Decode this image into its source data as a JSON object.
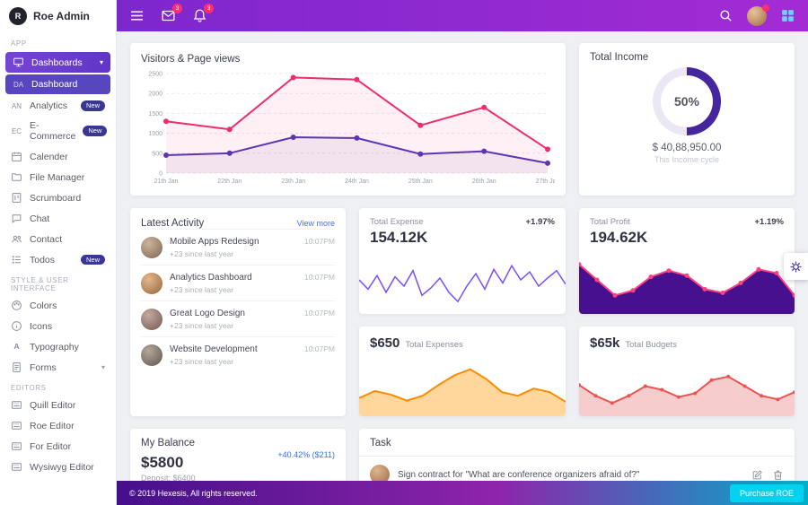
{
  "brand": {
    "name": "Roe Admin"
  },
  "topbar": {
    "mail_badge": "3",
    "bell_badge": "3"
  },
  "sidebar": {
    "badge_new": "New",
    "sections": {
      "app": "APP",
      "style": "STYLE & USER INTERFACE",
      "editors": "EDITORS"
    },
    "items": {
      "dashboards": "Dashboards",
      "dashboard": "Dashboard",
      "dashboard_prefix": "DA",
      "analytics": "Analytics",
      "analytics_prefix": "AN",
      "ecommerce": "E-Commerce",
      "ecommerce_prefix": "EC",
      "calender": "Calender",
      "file_manager": "File Manager",
      "scrumboard": "Scrumboard",
      "chat": "Chat",
      "contact": "Contact",
      "todos": "Todos",
      "colors": "Colors",
      "icons": "Icons",
      "typography": "Typography",
      "forms": "Forms",
      "quill_editor": "Quill Editor",
      "roe_editor": "Roe Editor",
      "for_editor": "For Editor",
      "wysiwyg_editor": "Wysiwyg Editor"
    }
  },
  "cards": {
    "visitors": {
      "title": "Visitors & Page views"
    },
    "income": {
      "title": "Total Income",
      "percent": "50%",
      "percent_value": 50,
      "amount": "$ 40,88,950.00",
      "caption": "This Income cycle"
    },
    "activity": {
      "title": "Latest Activity",
      "link": "View more",
      "items": [
        {
          "title": "Mobile Apps Redesign",
          "sub": "+23 since last year",
          "time": "10:07PM"
        },
        {
          "title": "Analytics Dashboard",
          "sub": "+23 since last year",
          "time": "10:07PM"
        },
        {
          "title": "Great Logo Design",
          "sub": "+23 since last year",
          "time": "10:07PM"
        },
        {
          "title": "Website Development",
          "sub": "+23 since last year",
          "time": "10:07PM"
        }
      ]
    },
    "expense": {
      "label": "Total Expense",
      "value": "154.12K",
      "delta": "+1.97%"
    },
    "profit": {
      "label": "Total Profit",
      "value": "194.62K",
      "delta": "+1.19%"
    },
    "expenses_mini": {
      "value": "$650",
      "label": "Total Expenses"
    },
    "budgets_mini": {
      "value": "$65k",
      "label": "Total Budgets"
    },
    "balance": {
      "title": "My Balance",
      "value": "$5800",
      "deposit": "Deposit: $6400",
      "delta": "+40.42% ($211)"
    },
    "task": {
      "title": "Task",
      "item": "Sign contract for \"What are conference organizers afraid of?\""
    }
  },
  "footer": {
    "copyright": "© 2019 Hexesis, All rights reserved.",
    "purchase": "Purchase ROE"
  },
  "colors": {
    "topbar_purple": "#7d27cd",
    "pink": "#ec2d6f",
    "deep_purple": "#5e35b1",
    "donut_purple": "#45269e",
    "cyan": "#00d2f0",
    "amber": "#fb8c00",
    "red": "#ef5350"
  },
  "charts": {
    "visitors": {
      "type": "line",
      "x": [
        "21th Jan",
        "22th Jan",
        "23th Jan",
        "24th Jan",
        "25th Jan",
        "26th Jan",
        "27th Jan"
      ],
      "yticks": [
        0,
        500,
        1000,
        1500,
        2000,
        2500
      ],
      "ymin": 0,
      "ymax": 2500,
      "series": [
        {
          "name": "Page views",
          "values": [
            1300,
            1100,
            2400,
            2350,
            1200,
            1650,
            600
          ],
          "color": "#ec2d6f",
          "fill": "rgba(236,45,111,0.07)",
          "markers": "#ec2d6f",
          "marker_r": 3,
          "width": 2
        },
        {
          "name": "Visitors",
          "values": [
            450,
            500,
            900,
            880,
            480,
            550,
            250
          ],
          "color": "#5e35b1",
          "fill": "rgba(94,53,177,0.07)",
          "markers": "#5e35b1",
          "marker_r": 3,
          "width": 2
        }
      ]
    },
    "expense_spark": {
      "type": "line",
      "ymin": 0,
      "ymax": 100,
      "series": [
        {
          "name": "Expense",
          "values": [
            55,
            40,
            62,
            35,
            60,
            45,
            70,
            30,
            42,
            58,
            35,
            20,
            45,
            65,
            40,
            72,
            50,
            78,
            55,
            68,
            45,
            58,
            70,
            48
          ],
          "color": "#7c4dff",
          "width": 1.5
        }
      ]
    },
    "profit_wave": {
      "type": "area",
      "ymin": 0,
      "ymax": 100,
      "series": [
        {
          "name": "Profit",
          "values": [
            80,
            55,
            30,
            38,
            60,
            70,
            62,
            40,
            34,
            50,
            72,
            66,
            30
          ],
          "color": "#ff4081",
          "fill": "#47108f",
          "markers": "#ff4081",
          "marker_r": 2.5,
          "width": 2
        }
      ]
    },
    "expenses_wave": {
      "type": "area",
      "ymin": 0,
      "ymax": 100,
      "series": [
        {
          "name": "Total Expenses",
          "values": [
            30,
            42,
            36,
            26,
            34,
            52,
            68,
            78,
            62,
            40,
            34,
            46,
            40,
            24
          ],
          "color": "#fb8c00",
          "fill": "rgba(255,183,77,0.55)",
          "width": 2
        }
      ]
    },
    "budgets_wave": {
      "type": "area",
      "ymin": 0,
      "ymax": 100,
      "series": [
        {
          "name": "Total Budgets",
          "values": [
            52,
            34,
            22,
            34,
            50,
            44,
            32,
            38,
            60,
            66,
            50,
            34,
            28,
            40
          ],
          "color": "#ef5350",
          "fill": "rgba(239,154,154,0.5)",
          "markers": "#ef5350",
          "marker_r": 2,
          "width": 2
        }
      ]
    }
  }
}
